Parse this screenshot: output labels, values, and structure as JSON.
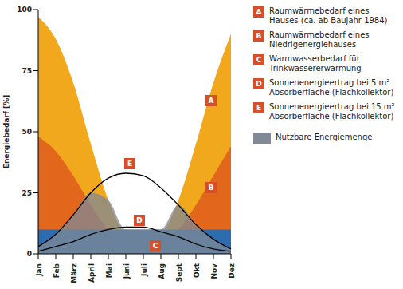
{
  "chart_data": {
    "type": "area",
    "y_label": "Energiebedarf [%]",
    "categories": [
      "Jan",
      "Feb",
      "März",
      "April",
      "Mai",
      "Juni",
      "Juli",
      "Aug",
      "Sept",
      "Okt",
      "Nov",
      "Dez"
    ],
    "ylim": [
      0,
      100
    ],
    "yticks": [
      0,
      25,
      50,
      75,
      100
    ],
    "grid": false,
    "series": [
      {
        "label": "A",
        "name": "Raumwärmebedarf eines Hauses (ca. ab Baujahr 1984)",
        "type": "area",
        "color": "#f2a81d",
        "values": [
          97,
          88,
          70,
          45,
          22,
          8,
          5,
          8,
          22,
          45,
          70,
          90
        ]
      },
      {
        "label": "B",
        "name": "Raumwärmebedarf eines Niedrigenergiehauses",
        "type": "area",
        "color": "#e2661b",
        "values": [
          48,
          42,
          32,
          20,
          10,
          5,
          3,
          5,
          10,
          20,
          32,
          44
        ]
      },
      {
        "label": "C",
        "name": "Warmwasserbedarf für Trinkwassererwärmung",
        "type": "area",
        "color": "#2e6cb0",
        "values": [
          10,
          10,
          10,
          10,
          10,
          10,
          10,
          10,
          10,
          10,
          10,
          10
        ]
      },
      {
        "label": "D",
        "name": "Sonnenenergieertrag bei 5 m² Absorberfläche (Flachkollektor)",
        "type": "line",
        "color": "#000000",
        "values": [
          1,
          3,
          5,
          8,
          10,
          11,
          11,
          9,
          7,
          4,
          2,
          1
        ]
      },
      {
        "label": "E",
        "name": "Sonnenenergieertrag bei 15 m² Absorberfläche (Flachkollektor)",
        "type": "line",
        "color": "#000000",
        "values": [
          3,
          8,
          16,
          25,
          31,
          33,
          32,
          27,
          20,
          12,
          6,
          2
        ]
      },
      {
        "name": "Nutzbare Energiemenge",
        "type": "area",
        "color": "#7f8a96",
        "values": [
          3,
          8,
          16,
          25,
          22,
          10,
          10,
          10,
          20,
          12,
          6,
          2
        ]
      }
    ]
  }
}
